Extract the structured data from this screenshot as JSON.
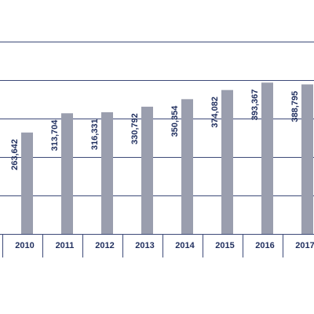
{
  "chart_data": {
    "type": "bar",
    "categories": [
      "2010",
      "2011",
      "2012",
      "2013",
      "2014",
      "2015",
      "2016",
      "2017"
    ],
    "values": [
      263642,
      313704,
      316331,
      330792,
      350354,
      374082,
      393367,
      388795
    ],
    "value_labels": [
      "263,642",
      "313,704",
      "316,331",
      "330,792",
      "350,354",
      "374,082",
      "393,367",
      "388,795"
    ],
    "title": "",
    "xlabel": "",
    "ylabel": "",
    "ylim": [
      0,
      500000
    ],
    "grid": true,
    "gridlines_at": [
      100000,
      200000,
      300000,
      400000,
      500000
    ],
    "colors": {
      "bar": "#9a9eae",
      "grid": "#3d4a78",
      "text": "#1f2e5e"
    }
  }
}
